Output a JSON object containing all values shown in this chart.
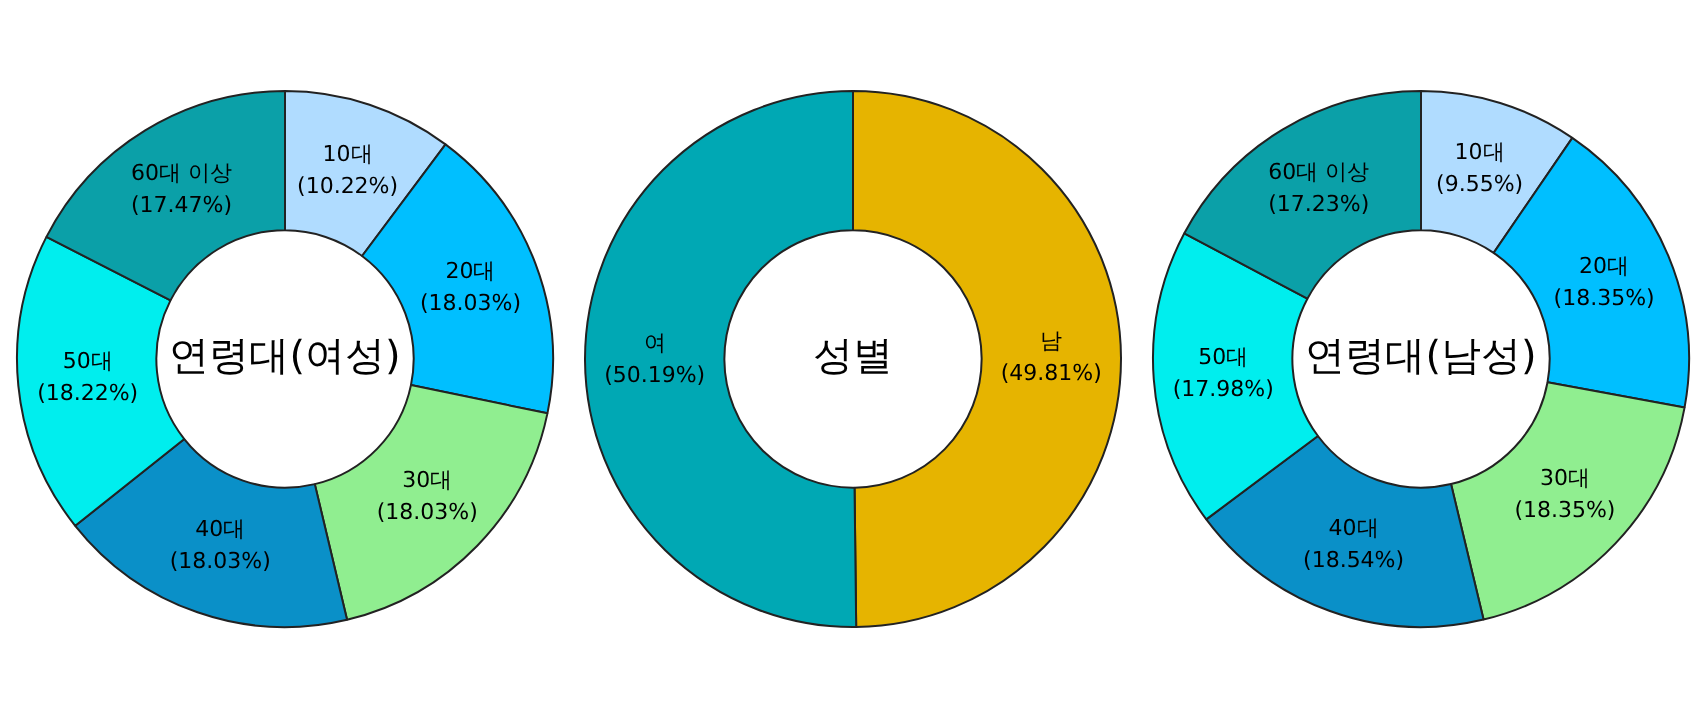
{
  "chart_data": [
    {
      "type": "donut",
      "title": "연령대(여성)",
      "categories": [
        "10대",
        "20대",
        "30대",
        "40대",
        "50대",
        "60대 이상"
      ],
      "values": [
        10.22,
        18.03,
        18.03,
        18.03,
        18.22,
        17.47
      ],
      "value_labels": [
        "(10.22%)",
        "(18.03%)",
        "(18.03%)",
        "(18.03%)",
        "(18.22%)",
        "(17.47%)"
      ],
      "colors": [
        "#b0dcff",
        "#00bfff",
        "#90ee90",
        "#0a90c8",
        "#00eeee",
        "#0ba0a8"
      ]
    },
    {
      "type": "donut",
      "title": "성별",
      "categories": [
        "남",
        "여"
      ],
      "values": [
        49.81,
        50.19
      ],
      "value_labels": [
        "(49.81%)",
        "(50.19%)"
      ],
      "colors": [
        "#e6b400",
        "#00a8b4"
      ]
    },
    {
      "type": "donut",
      "title": "연령대(남성)",
      "categories": [
        "10대",
        "20대",
        "30대",
        "40대",
        "50대",
        "60대 이상"
      ],
      "values": [
        9.55,
        18.35,
        18.35,
        18.54,
        17.98,
        17.23
      ],
      "value_labels": [
        "(9.55%)",
        "(18.35%)",
        "(18.35%)",
        "(18.54%)",
        "(17.98%)",
        "(17.23%)"
      ],
      "colors": [
        "#b0dcff",
        "#00bfff",
        "#90ee90",
        "#0a90c8",
        "#00eeee",
        "#0ba0a8"
      ]
    }
  ]
}
